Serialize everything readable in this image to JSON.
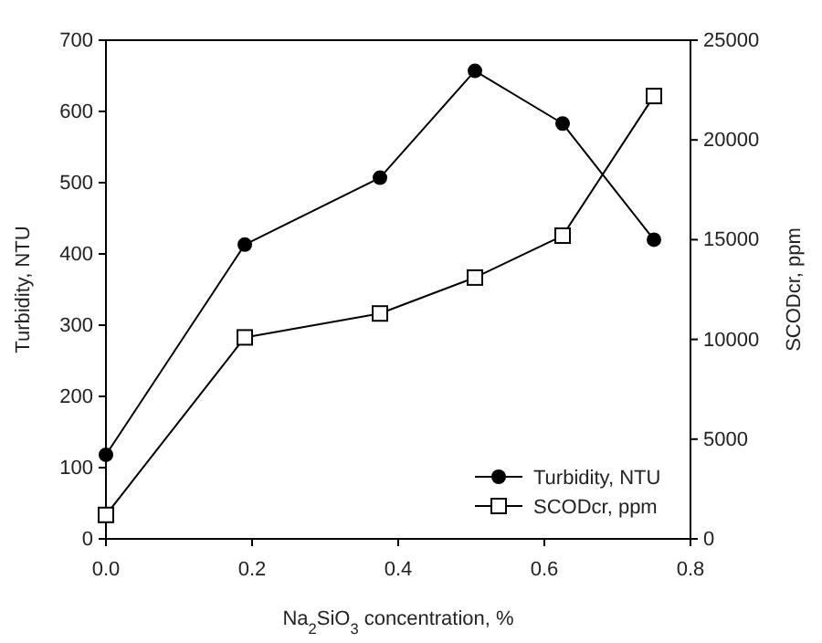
{
  "chart_data": {
    "type": "line",
    "xlabel": "Na$_{2}$SiO$_{3}$ concentration, %",
    "ylabel": "Turbidity, NTU",
    "y2label": "SCODcr, ppm",
    "x": [
      0,
      0.19,
      0.375,
      0.505,
      0.625,
      0.75
    ],
    "series": [
      {
        "name": "Turbidity, NTU",
        "color": "#000000",
        "marker": "circle",
        "values": [
          118,
          413,
          507,
          657,
          583,
          420
        ]
      },
      {
        "name": "SCODcr, ppm",
        "color": "#000000",
        "marker": "square",
        "axis": "y2",
        "values": [
          1200,
          10100,
          11300,
          13100,
          15200,
          22200
        ]
      }
    ],
    "xlim": [
      0,
      0.8
    ],
    "xticks": [
      {
        "value": 0,
        "label": "0.0"
      },
      0.2,
      0.4,
      0.6,
      0.8
    ],
    "ylim": [
      0,
      700
    ],
    "yticks": [
      0,
      100,
      200,
      300,
      400,
      500,
      600,
      700
    ],
    "y2lim": [
      0,
      25000
    ],
    "y2ticks": [
      0,
      5000,
      10000,
      15000,
      20000,
      25000
    ],
    "legend": "bottom right",
    "grid": false,
    "line_style": "solid"
  }
}
